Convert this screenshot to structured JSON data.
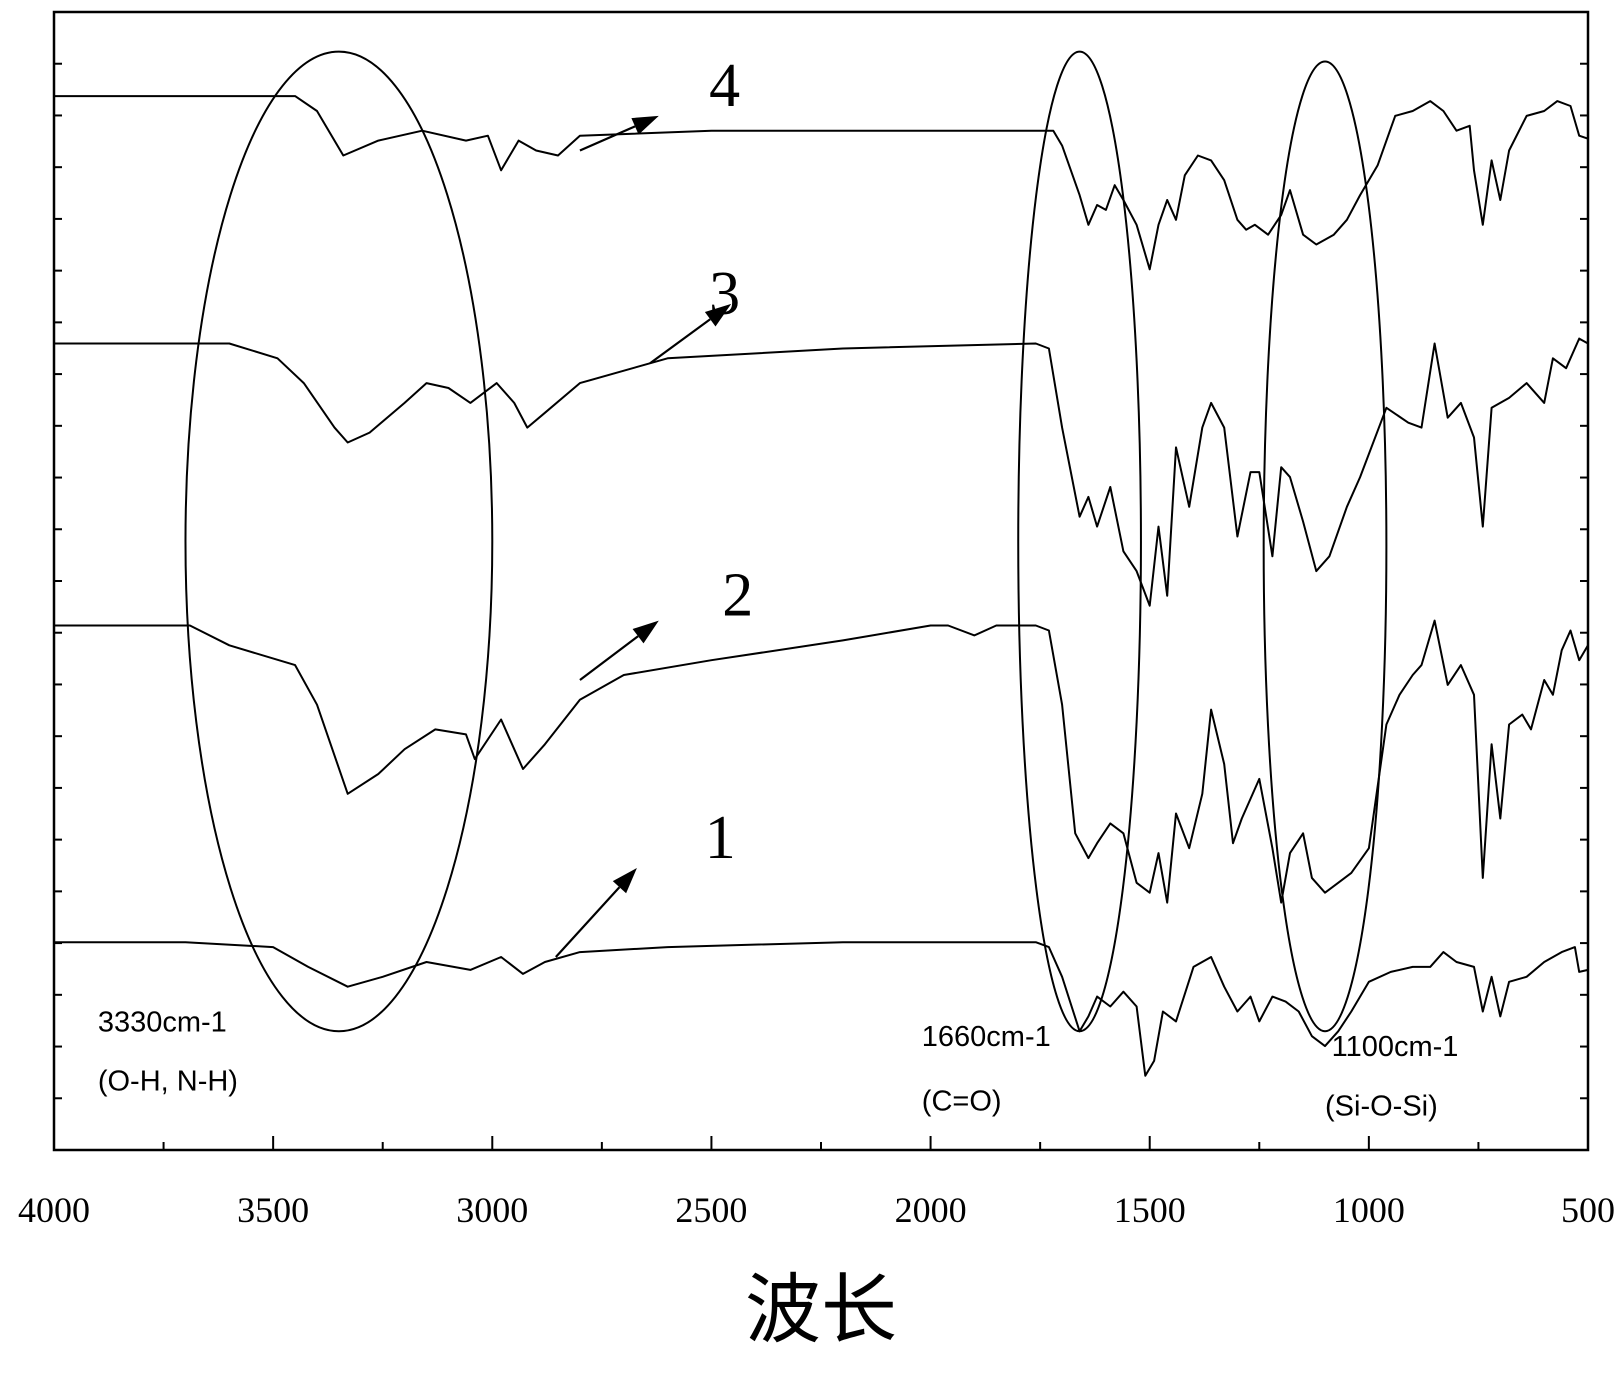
{
  "chart_data": {
    "type": "line",
    "title": "",
    "xlabel": "波长",
    "ylabel": "",
    "xlim": [
      4000,
      500
    ],
    "x_reversed": true,
    "ylim": [
      0,
      11.5
    ],
    "y_ticks_labeled": false,
    "grid": false,
    "legend": "none",
    "x_ticks": [
      {
        "value": 4000,
        "label": "4000"
      },
      {
        "value": 3500,
        "label": "3500"
      },
      {
        "value": 3000,
        "label": "3000"
      },
      {
        "value": 2500,
        "label": "2500"
      },
      {
        "value": 2000,
        "label": "2000"
      },
      {
        "value": 1500,
        "label": "1500"
      },
      {
        "value": 1000,
        "label": "1000"
      },
      {
        "value": 500,
        "label": "500"
      }
    ],
    "x_minor_ticks": [
      3750,
      3250,
      2750,
      2250,
      1750,
      1250,
      750
    ],
    "y_minor_count": 22,
    "series": [
      {
        "label": "1",
        "label_position": [
          2480,
          2.95
        ],
        "arrow_from": [
          2855,
          1.95
        ],
        "arrow_to": [
          2670,
          2.85
        ],
        "points": [
          [
            4000,
            2.1
          ],
          [
            3700,
            2.1
          ],
          [
            3500,
            2.05
          ],
          [
            3420,
            1.85
          ],
          [
            3330,
            1.65
          ],
          [
            3250,
            1.75
          ],
          [
            3150,
            1.9
          ],
          [
            3050,
            1.82
          ],
          [
            2980,
            1.95
          ],
          [
            2930,
            1.78
          ],
          [
            2880,
            1.9
          ],
          [
            2800,
            2.0
          ],
          [
            2600,
            2.05
          ],
          [
            2200,
            2.1
          ],
          [
            1760,
            2.1
          ],
          [
            1730,
            2.05
          ],
          [
            1700,
            1.75
          ],
          [
            1660,
            1.2
          ],
          [
            1640,
            1.35
          ],
          [
            1620,
            1.55
          ],
          [
            1590,
            1.45
          ],
          [
            1560,
            1.6
          ],
          [
            1530,
            1.45
          ],
          [
            1510,
            0.75
          ],
          [
            1490,
            0.9
          ],
          [
            1470,
            1.4
          ],
          [
            1440,
            1.3
          ],
          [
            1400,
            1.85
          ],
          [
            1360,
            1.95
          ],
          [
            1330,
            1.65
          ],
          [
            1300,
            1.4
          ],
          [
            1270,
            1.55
          ],
          [
            1250,
            1.3
          ],
          [
            1220,
            1.55
          ],
          [
            1190,
            1.5
          ],
          [
            1160,
            1.4
          ],
          [
            1130,
            1.15
          ],
          [
            1100,
            1.05
          ],
          [
            1070,
            1.2
          ],
          [
            1040,
            1.4
          ],
          [
            1000,
            1.7
          ],
          [
            950,
            1.8
          ],
          [
            900,
            1.85
          ],
          [
            860,
            1.85
          ],
          [
            830,
            2.0
          ],
          [
            800,
            1.9
          ],
          [
            760,
            1.85
          ],
          [
            740,
            1.4
          ],
          [
            720,
            1.75
          ],
          [
            700,
            1.35
          ],
          [
            680,
            1.7
          ],
          [
            640,
            1.75
          ],
          [
            600,
            1.9
          ],
          [
            560,
            2.0
          ],
          [
            530,
            2.05
          ],
          [
            520,
            1.8
          ],
          [
            500,
            1.82
          ]
        ]
      },
      {
        "label": "2",
        "label_position": [
          2440,
          5.4
        ],
        "arrow_from": [
          2800,
          4.75
        ],
        "arrow_to": [
          2620,
          5.35
        ],
        "points": [
          [
            4000,
            5.3
          ],
          [
            3690,
            5.3
          ],
          [
            3600,
            5.1
          ],
          [
            3450,
            4.9
          ],
          [
            3400,
            4.5
          ],
          [
            3330,
            3.6
          ],
          [
            3260,
            3.8
          ],
          [
            3200,
            4.05
          ],
          [
            3130,
            4.25
          ],
          [
            3060,
            4.2
          ],
          [
            3040,
            3.95
          ],
          [
            2980,
            4.35
          ],
          [
            2930,
            3.85
          ],
          [
            2880,
            4.1
          ],
          [
            2800,
            4.55
          ],
          [
            2700,
            4.8
          ],
          [
            2500,
            4.95
          ],
          [
            2200,
            5.15
          ],
          [
            2000,
            5.3
          ],
          [
            1960,
            5.3
          ],
          [
            1900,
            5.2
          ],
          [
            1850,
            5.3
          ],
          [
            1760,
            5.3
          ],
          [
            1730,
            5.25
          ],
          [
            1700,
            4.5
          ],
          [
            1670,
            3.2
          ],
          [
            1640,
            2.95
          ],
          [
            1620,
            3.1
          ],
          [
            1590,
            3.3
          ],
          [
            1560,
            3.2
          ],
          [
            1530,
            2.7
          ],
          [
            1500,
            2.6
          ],
          [
            1480,
            3.0
          ],
          [
            1460,
            2.5
          ],
          [
            1440,
            3.4
          ],
          [
            1410,
            3.05
          ],
          [
            1380,
            3.6
          ],
          [
            1360,
            4.45
          ],
          [
            1330,
            3.9
          ],
          [
            1310,
            3.1
          ],
          [
            1290,
            3.35
          ],
          [
            1250,
            3.75
          ],
          [
            1220,
            3.05
          ],
          [
            1200,
            2.5
          ],
          [
            1180,
            3.0
          ],
          [
            1150,
            3.2
          ],
          [
            1130,
            2.75
          ],
          [
            1100,
            2.6
          ],
          [
            1070,
            2.7
          ],
          [
            1040,
            2.8
          ],
          [
            1000,
            3.05
          ],
          [
            960,
            4.3
          ],
          [
            930,
            4.6
          ],
          [
            900,
            4.8
          ],
          [
            880,
            4.9
          ],
          [
            850,
            5.35
          ],
          [
            820,
            4.7
          ],
          [
            790,
            4.9
          ],
          [
            760,
            4.6
          ],
          [
            740,
            2.75
          ],
          [
            720,
            4.1
          ],
          [
            700,
            3.35
          ],
          [
            680,
            4.3
          ],
          [
            650,
            4.4
          ],
          [
            630,
            4.25
          ],
          [
            600,
            4.75
          ],
          [
            580,
            4.6
          ],
          [
            560,
            5.05
          ],
          [
            540,
            5.25
          ],
          [
            520,
            4.95
          ],
          [
            500,
            5.1
          ]
        ]
      },
      {
        "label": "3",
        "label_position": [
          2470,
          8.45
        ],
        "arrow_from": [
          2640,
          7.95
        ],
        "arrow_to": [
          2455,
          8.55
        ],
        "points": [
          [
            4000,
            8.15
          ],
          [
            3600,
            8.15
          ],
          [
            3490,
            8.0
          ],
          [
            3430,
            7.75
          ],
          [
            3360,
            7.3
          ],
          [
            3330,
            7.15
          ],
          [
            3280,
            7.25
          ],
          [
            3200,
            7.55
          ],
          [
            3150,
            7.75
          ],
          [
            3100,
            7.7
          ],
          [
            3050,
            7.55
          ],
          [
            2990,
            7.75
          ],
          [
            2950,
            7.55
          ],
          [
            2920,
            7.3
          ],
          [
            2880,
            7.45
          ],
          [
            2800,
            7.75
          ],
          [
            2600,
            8.0
          ],
          [
            2200,
            8.1
          ],
          [
            1760,
            8.15
          ],
          [
            1730,
            8.1
          ],
          [
            1700,
            7.3
          ],
          [
            1660,
            6.4
          ],
          [
            1640,
            6.6
          ],
          [
            1620,
            6.3
          ],
          [
            1590,
            6.7
          ],
          [
            1560,
            6.05
          ],
          [
            1530,
            5.85
          ],
          [
            1500,
            5.5
          ],
          [
            1480,
            6.3
          ],
          [
            1460,
            5.6
          ],
          [
            1440,
            7.1
          ],
          [
            1410,
            6.5
          ],
          [
            1380,
            7.3
          ],
          [
            1360,
            7.55
          ],
          [
            1330,
            7.3
          ],
          [
            1300,
            6.2
          ],
          [
            1270,
            6.85
          ],
          [
            1250,
            6.85
          ],
          [
            1220,
            6.0
          ],
          [
            1200,
            6.9
          ],
          [
            1180,
            6.8
          ],
          [
            1150,
            6.35
          ],
          [
            1120,
            5.85
          ],
          [
            1090,
            6.0
          ],
          [
            1050,
            6.5
          ],
          [
            1020,
            6.8
          ],
          [
            960,
            7.5
          ],
          [
            910,
            7.35
          ],
          [
            880,
            7.3
          ],
          [
            850,
            8.15
          ],
          [
            820,
            7.4
          ],
          [
            790,
            7.55
          ],
          [
            760,
            7.2
          ],
          [
            740,
            6.3
          ],
          [
            720,
            7.5
          ],
          [
            680,
            7.6
          ],
          [
            640,
            7.75
          ],
          [
            600,
            7.55
          ],
          [
            580,
            8.0
          ],
          [
            550,
            7.9
          ],
          [
            520,
            8.2
          ],
          [
            500,
            8.15
          ]
        ]
      },
      {
        "label": "4",
        "label_position": [
          2470,
          10.55
        ],
        "arrow_from": [
          2800,
          10.1
        ],
        "arrow_to": [
          2620,
          10.45
        ],
        "points": [
          [
            4000,
            10.65
          ],
          [
            3450,
            10.65
          ],
          [
            3400,
            10.5
          ],
          [
            3340,
            10.05
          ],
          [
            3260,
            10.2
          ],
          [
            3160,
            10.3
          ],
          [
            3060,
            10.2
          ],
          [
            3010,
            10.25
          ],
          [
            2980,
            9.9
          ],
          [
            2940,
            10.2
          ],
          [
            2900,
            10.1
          ],
          [
            2850,
            10.05
          ],
          [
            2800,
            10.25
          ],
          [
            2500,
            10.3
          ],
          [
            2200,
            10.3
          ],
          [
            1760,
            10.3
          ],
          [
            1720,
            10.3
          ],
          [
            1700,
            10.15
          ],
          [
            1660,
            9.65
          ],
          [
            1640,
            9.35
          ],
          [
            1620,
            9.55
          ],
          [
            1600,
            9.5
          ],
          [
            1580,
            9.75
          ],
          [
            1560,
            9.6
          ],
          [
            1530,
            9.35
          ],
          [
            1500,
            8.9
          ],
          [
            1480,
            9.35
          ],
          [
            1460,
            9.6
          ],
          [
            1440,
            9.4
          ],
          [
            1420,
            9.85
          ],
          [
            1390,
            10.05
          ],
          [
            1360,
            10.0
          ],
          [
            1330,
            9.8
          ],
          [
            1300,
            9.4
          ],
          [
            1280,
            9.3
          ],
          [
            1260,
            9.35
          ],
          [
            1230,
            9.25
          ],
          [
            1200,
            9.45
          ],
          [
            1180,
            9.7
          ],
          [
            1150,
            9.25
          ],
          [
            1120,
            9.15
          ],
          [
            1080,
            9.25
          ],
          [
            1050,
            9.4
          ],
          [
            1020,
            9.65
          ],
          [
            980,
            9.95
          ],
          [
            940,
            10.45
          ],
          [
            900,
            10.5
          ],
          [
            860,
            10.6
          ],
          [
            830,
            10.5
          ],
          [
            800,
            10.3
          ],
          [
            770,
            10.35
          ],
          [
            760,
            9.9
          ],
          [
            740,
            9.35
          ],
          [
            720,
            10.0
          ],
          [
            700,
            9.6
          ],
          [
            680,
            10.1
          ],
          [
            640,
            10.45
          ],
          [
            600,
            10.5
          ],
          [
            570,
            10.6
          ],
          [
            540,
            10.55
          ],
          [
            520,
            10.25
          ],
          [
            500,
            10.22
          ]
        ]
      }
    ],
    "annotations": [
      {
        "text": "3330cm-1",
        "x": 3900,
        "y": 1.2
      },
      {
        "text": "(O-H, N-H)",
        "x": 3900,
        "y": 0.6
      },
      {
        "text": "1660cm-1",
        "x": 2020,
        "y": 1.05
      },
      {
        "text": "(C=O)",
        "x": 2020,
        "y": 0.4
      },
      {
        "text": "1100cm-1",
        "x": 1085,
        "y": 0.95
      },
      {
        "text": "(Si-O-Si)",
        "x": 1100,
        "y": 0.35
      }
    ],
    "ellipses": [
      {
        "center": [
          3350,
          6.15
        ],
        "rx": 350,
        "ry": 4.95
      },
      {
        "center": [
          1660,
          6.15
        ],
        "rx": 140,
        "ry": 4.95
      },
      {
        "center": [
          1100,
          6.1
        ],
        "rx": 140,
        "ry": 4.9
      }
    ]
  }
}
